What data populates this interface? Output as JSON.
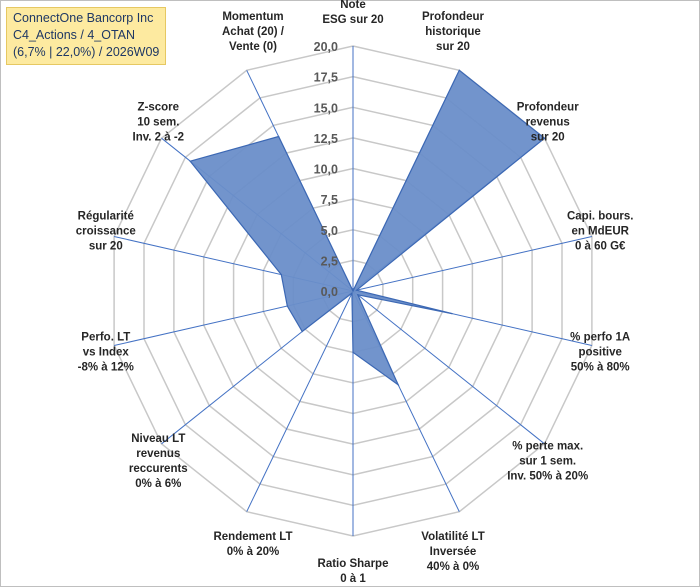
{
  "title_lines": [
    "ConnectOne Bancorp Inc",
    "C4_Actions / 4_OTAN",
    "(6,7% | 22,0%) / 2026W09"
  ],
  "colors": {
    "area_fill": "#6a8ec9",
    "area_stroke": "#3c68b4",
    "spokes": "#4472c4",
    "grid": "#c8c8c8",
    "title_bg": "#fdeaa0"
  },
  "chart_data": {
    "type": "radar",
    "rmin": 0,
    "rmax": 20,
    "ticks": [
      0,
      2.5,
      5,
      7.5,
      10,
      12.5,
      15,
      17.5,
      20
    ],
    "tick_labels": [
      "0,0",
      "2,5",
      "5,0",
      "7,5",
      "10,0",
      "12,5",
      "15,0",
      "17,5",
      "20,0"
    ],
    "axes": [
      {
        "label": [
          "Note",
          "ESG sur 20"
        ],
        "value": 0
      },
      {
        "label": [
          "Profondeur",
          "historique",
          "sur 20"
        ],
        "value": 20
      },
      {
        "label": [
          "Profondeur",
          "revenus",
          "sur 20"
        ],
        "value": 20
      },
      {
        "label": [
          "Capi. bours.",
          "en MdEUR",
          "0 à 60 G€"
        ],
        "value": 0.3
      },
      {
        "label": [
          "% perfo 1A",
          "positive",
          "50% à 80%"
        ],
        "value": 8.3
      },
      {
        "label": [
          "% perte max.",
          "sur 1 sem.",
          "Inv. 50% à 20%"
        ],
        "value": 0.5
      },
      {
        "label": [
          "Volatilité LT",
          "Inversée",
          "40% à 0%"
        ],
        "value": 8.5
      },
      {
        "label": [
          "Ratio Sharpe",
          "0 à 1"
        ],
        "value": 5.0
      },
      {
        "label": [
          "Rendement LT",
          "0% à 20%"
        ],
        "value": 0.2
      },
      {
        "label": [
          "Niveau LT",
          "revenus",
          "reccurents",
          "0% à 6%"
        ],
        "value": 5.3
      },
      {
        "label": [
          "Perfo. LT",
          "vs Index",
          "-8% à 12%"
        ],
        "value": 5.5
      },
      {
        "label": [
          "Régularité",
          "croissance",
          "sur 20"
        ],
        "value": 6.0
      },
      {
        "label": [
          "Z-score",
          "10 sem.",
          "Inv. 2 à -2"
        ],
        "value": 17.0
      },
      {
        "label": [
          "Momentum",
          "Achat (20) /",
          "Vente (0)"
        ],
        "value": 14.0
      }
    ]
  }
}
